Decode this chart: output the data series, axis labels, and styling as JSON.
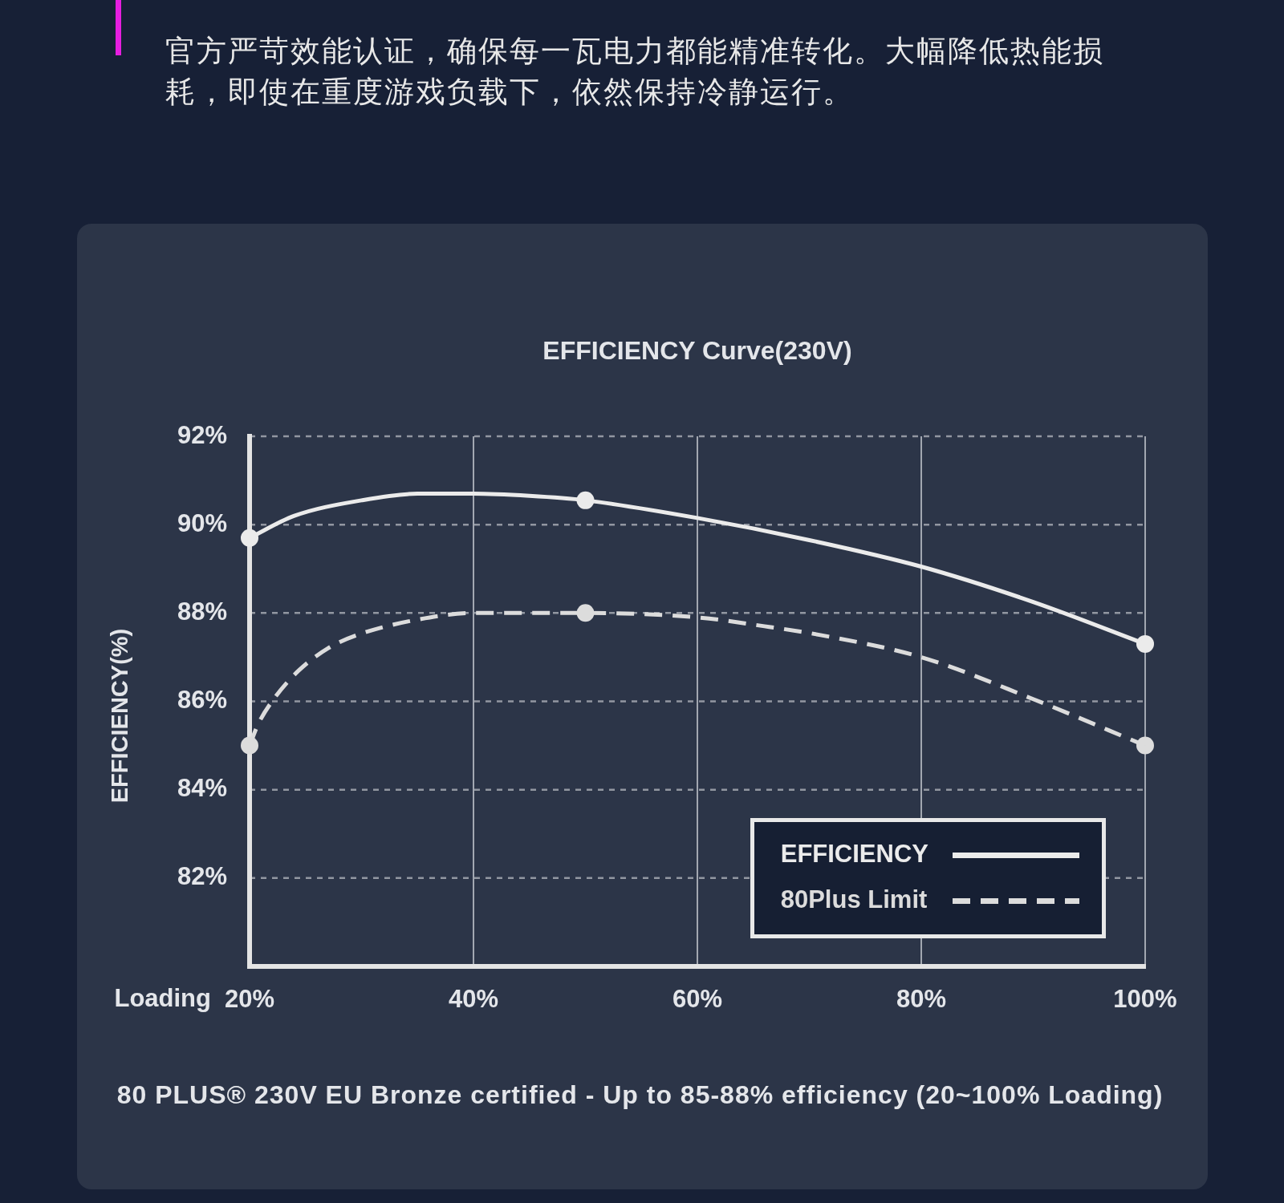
{
  "chart_data": {
    "type": "line",
    "title": "EFFICIENCY Curve(230V)",
    "xlabel": "Loading",
    "ylabel": "EFFICIENCY(%)",
    "series": [
      {
        "name": "EFFICIENCY",
        "color": "#ebebeb",
        "line_style": "solid",
        "x": [
          20,
          24,
          30,
          35,
          40,
          45,
          50,
          60,
          70,
          80,
          90,
          100
        ],
        "values": [
          89.7,
          90.2,
          90.55,
          90.7,
          90.7,
          90.65,
          90.55,
          90.15,
          89.65,
          89.05,
          88.25,
          87.3
        ]
      },
      {
        "name": "80Plus Limit",
        "color": "#dcdcdc",
        "line_style": "dashed",
        "x": [
          20,
          20.8,
          22.3,
          24.4,
          27,
          29.6,
          35,
          40,
          45,
          50,
          60,
          66,
          71,
          80,
          90,
          100
        ],
        "values": [
          85.0,
          85.5,
          86.1,
          86.7,
          87.2,
          87.5,
          87.85,
          88.0,
          88.0,
          88.0,
          87.9,
          87.7,
          87.5,
          87.0,
          86.05,
          85.0
        ]
      },
      {
        "type": "scatter",
        "color": "#ebebeb",
        "marker": "circle",
        "x": [
          20,
          50,
          100
        ],
        "values": [
          89.7,
          90.55,
          87.3
        ]
      },
      {
        "type": "scatter",
        "color": "#dcdcdc",
        "marker": "circle",
        "x": [
          20,
          50,
          100
        ],
        "values": [
          85.0,
          88.0,
          85.0
        ]
      }
    ],
    "xlim": [
      20,
      100
    ],
    "xticks": [
      {
        "value": 20,
        "label": "20%"
      },
      {
        "value": 40,
        "label": "40%"
      },
      {
        "value": 60,
        "label": "60%"
      },
      {
        "value": 80,
        "label": "80%"
      },
      {
        "value": 100,
        "label": "100%"
      }
    ],
    "ylim": [
      80,
      92
    ],
    "yticks": [
      {
        "value": 82,
        "label": "82%"
      },
      {
        "value": 84,
        "label": "84%"
      },
      {
        "value": 86,
        "label": "86%"
      },
      {
        "value": 88,
        "label": "88%"
      },
      {
        "value": 90,
        "label": "90%"
      },
      {
        "value": 92,
        "label": "92%"
      }
    ],
    "grid": true,
    "legend": "bottom right",
    "annotations": [
      "官方严苛效能认证，确保每一瓦电力都能精准转化。大幅降低热能损耗，即使在重度游戏负载下，依然保持冷静运行。",
      "80 PLUS® 230V EU Bronze certified - Up to 85-88% efficiency (20~100% Loading)"
    ]
  }
}
